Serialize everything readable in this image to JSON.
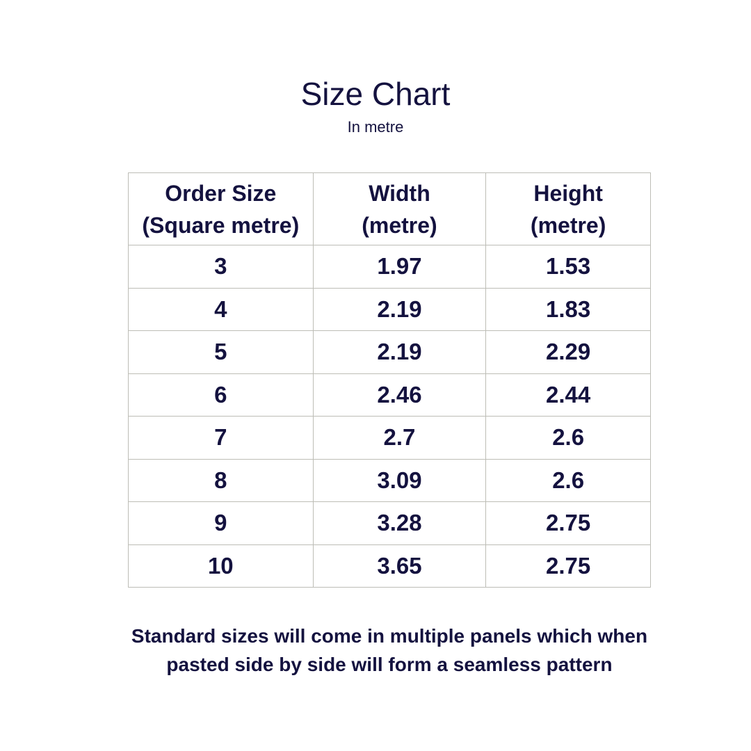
{
  "title": "Size Chart",
  "subtitle": "In metre",
  "table": {
    "headers": [
      [
        "Order Size",
        "(Square metre)"
      ],
      [
        "Width",
        "(metre)"
      ],
      [
        "Height",
        "(metre)"
      ]
    ],
    "rows": [
      [
        "3",
        "1.97",
        "1.53"
      ],
      [
        "4",
        "2.19",
        "1.83"
      ],
      [
        "5",
        "2.19",
        "2.29"
      ],
      [
        "6",
        "2.46",
        "2.44"
      ],
      [
        "7",
        "2.7",
        "2.6"
      ],
      [
        "8",
        "3.09",
        "2.6"
      ],
      [
        "9",
        "3.28",
        "2.75"
      ],
      [
        "10",
        "3.65",
        "2.75"
      ]
    ]
  },
  "note": [
    "Standard sizes  will come in multiple panels which when",
    "pasted side by side will form a seamless pattern"
  ],
  "colors": {
    "text": "#14123f",
    "border": "#bdbdb6",
    "background": "#ffffff"
  }
}
